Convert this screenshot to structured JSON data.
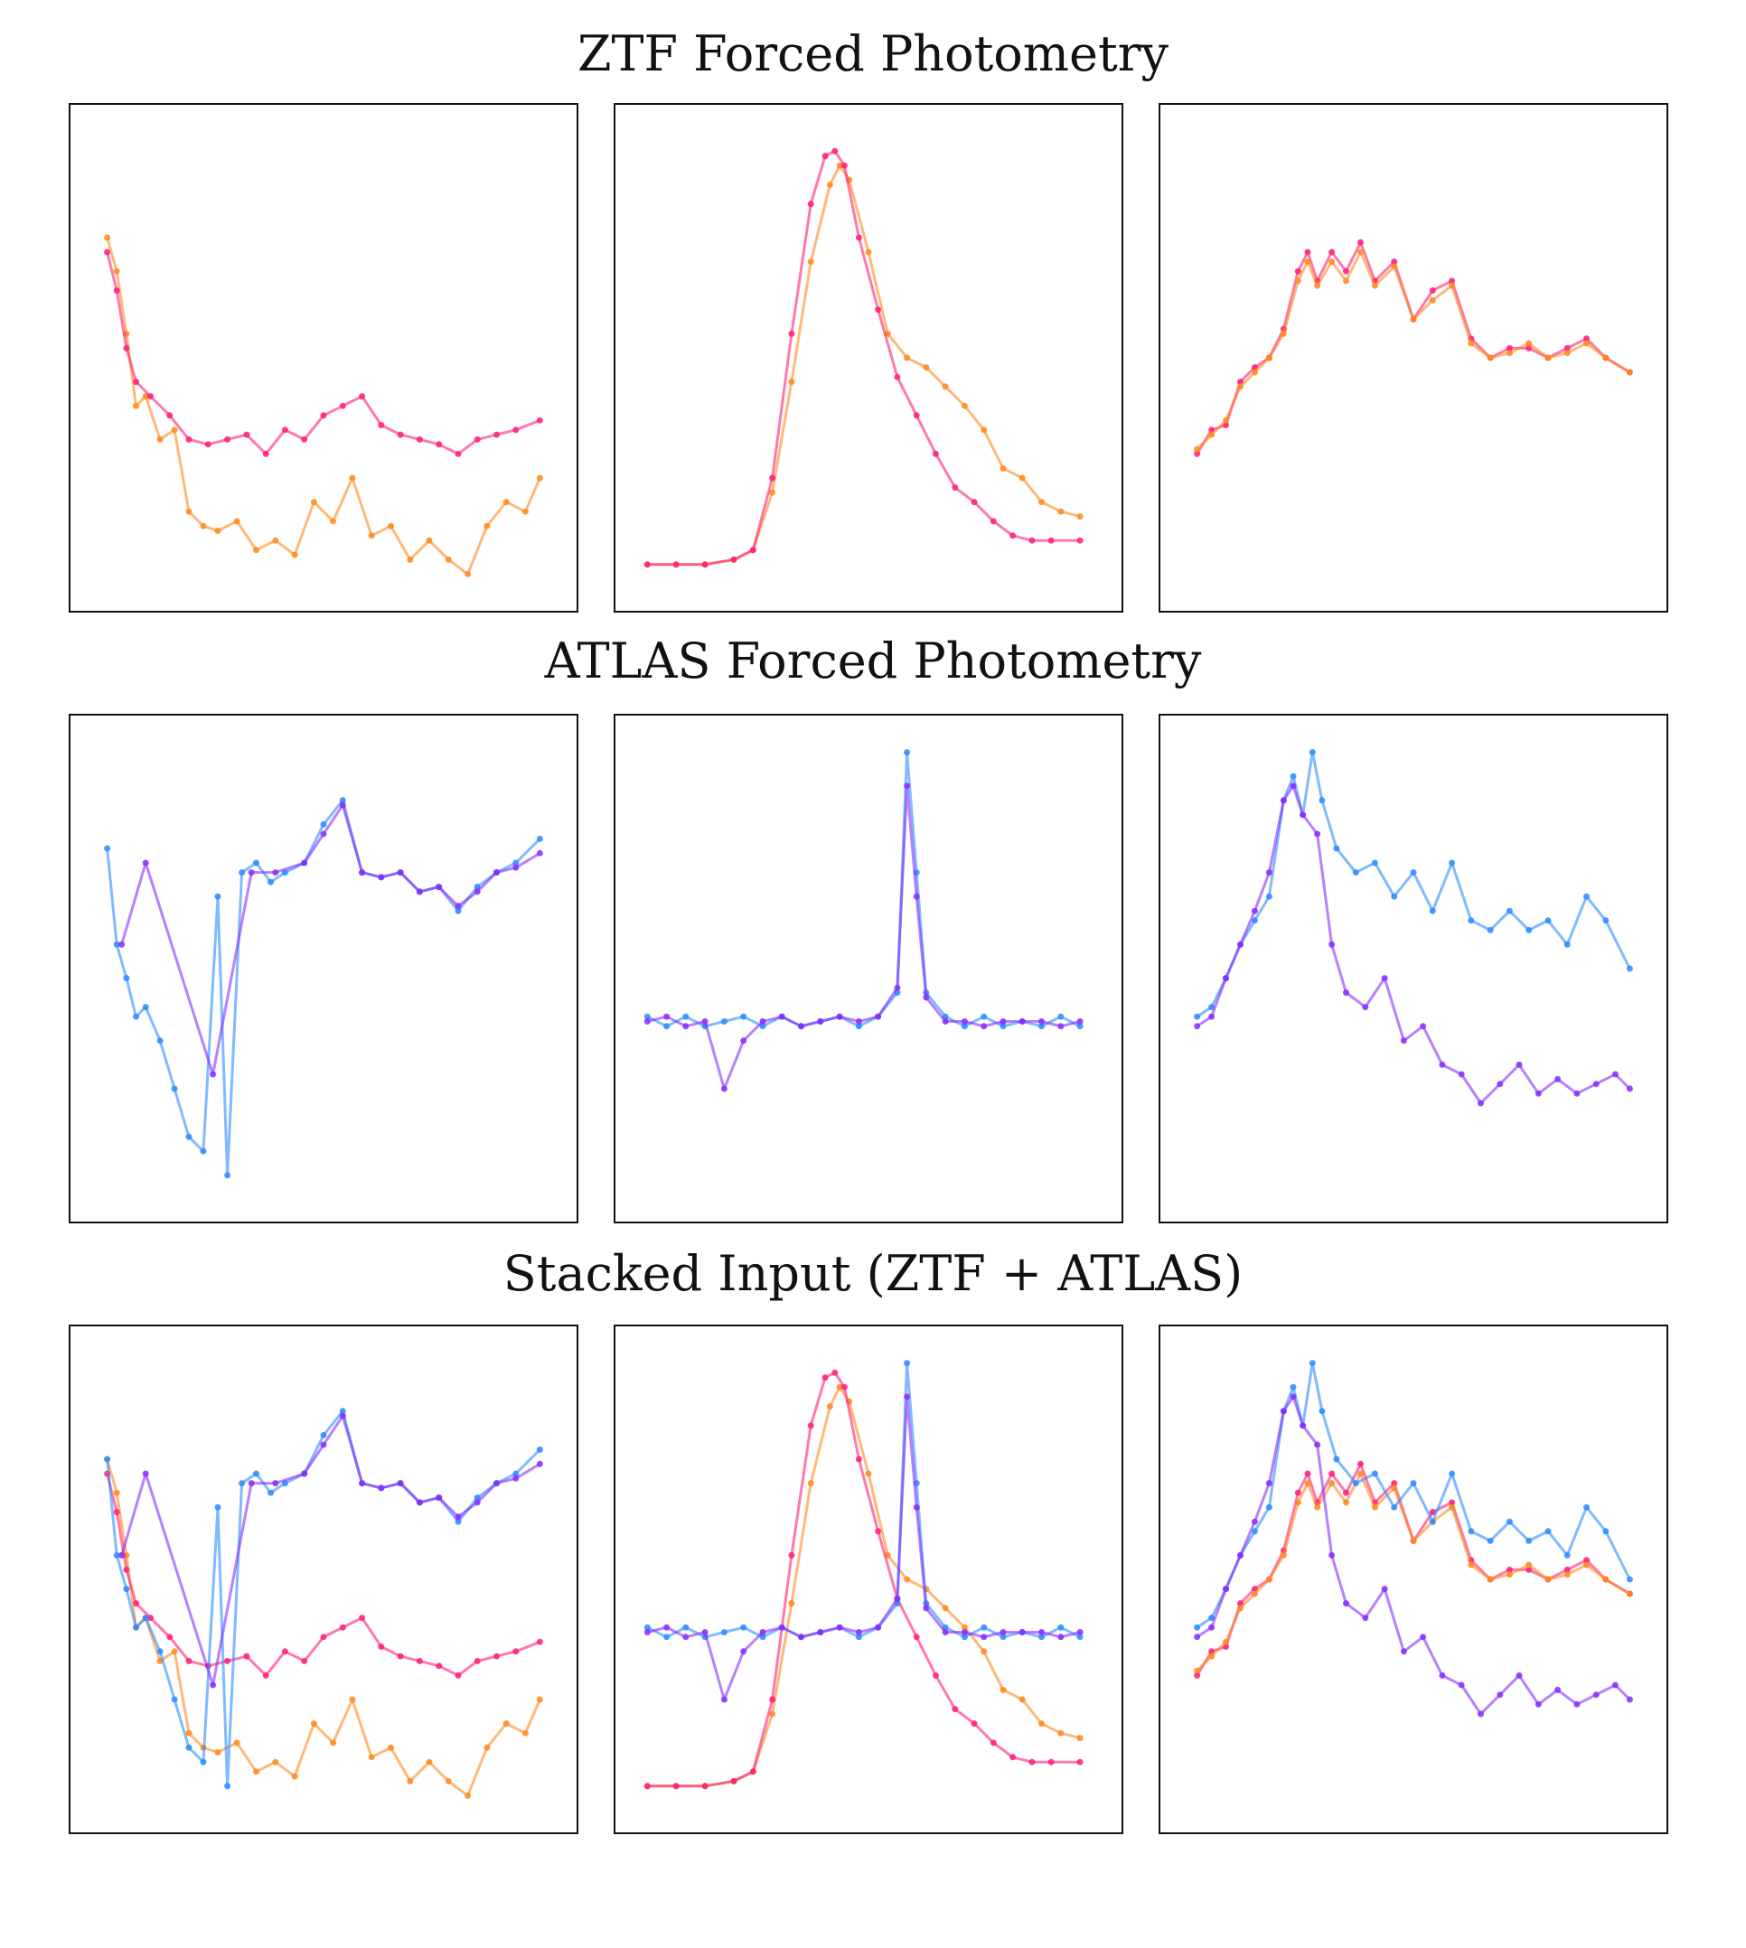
{
  "titles": {
    "row1": "ZTF Forced Photometry",
    "row2": "ATLAS Forced Photometry",
    "row3": "Stacked Input (ZTF + ATLAS)"
  },
  "colors": {
    "ztf_g": "#ff1f7a",
    "ztf_r": "#ff8a1f",
    "atlas_c": "#2b8cff",
    "atlas_o": "#8a2bff"
  },
  "chart_data": [
    {
      "type": "line",
      "panel": "ztf-1",
      "ylim": [
        0,
        1
      ],
      "xlim": [
        0,
        1
      ],
      "series": [
        {
          "color_key": "ztf_r",
          "x": [
            0.05,
            0.07,
            0.09,
            0.11,
            0.13,
            0.16,
            0.19,
            0.22,
            0.25,
            0.28,
            0.32,
            0.36,
            0.4,
            0.44,
            0.48,
            0.52,
            0.56,
            0.6,
            0.64,
            0.68,
            0.72,
            0.76,
            0.8,
            0.84,
            0.88,
            0.92,
            0.95
          ],
          "y": [
            0.75,
            0.68,
            0.55,
            0.4,
            0.42,
            0.33,
            0.35,
            0.18,
            0.15,
            0.14,
            0.16,
            0.1,
            0.12,
            0.09,
            0.2,
            0.16,
            0.25,
            0.13,
            0.15,
            0.08,
            0.12,
            0.08,
            0.05,
            0.15,
            0.2,
            0.18,
            0.25
          ]
        },
        {
          "color_key": "ztf_g",
          "x": [
            0.05,
            0.07,
            0.09,
            0.11,
            0.14,
            0.18,
            0.22,
            0.26,
            0.3,
            0.34,
            0.38,
            0.42,
            0.46,
            0.5,
            0.54,
            0.58,
            0.62,
            0.66,
            0.7,
            0.74,
            0.78,
            0.82,
            0.86,
            0.9,
            0.95
          ],
          "y": [
            0.72,
            0.64,
            0.52,
            0.45,
            0.42,
            0.38,
            0.33,
            0.32,
            0.33,
            0.34,
            0.3,
            0.35,
            0.33,
            0.38,
            0.4,
            0.42,
            0.36,
            0.34,
            0.33,
            0.32,
            0.3,
            0.33,
            0.34,
            0.35,
            0.37
          ]
        }
      ]
    },
    {
      "type": "line",
      "panel": "ztf-2",
      "ylim": [
        0,
        1
      ],
      "xlim": [
        0,
        1
      ],
      "series": [
        {
          "color_key": "ztf_r",
          "x": [
            0.04,
            0.1,
            0.16,
            0.22,
            0.26,
            0.3,
            0.34,
            0.38,
            0.42,
            0.44,
            0.46,
            0.5,
            0.54,
            0.58,
            0.62,
            0.66,
            0.7,
            0.74,
            0.78,
            0.82,
            0.86,
            0.9,
            0.94
          ],
          "y": [
            0.07,
            0.07,
            0.07,
            0.08,
            0.1,
            0.22,
            0.45,
            0.7,
            0.86,
            0.9,
            0.87,
            0.72,
            0.55,
            0.5,
            0.48,
            0.44,
            0.4,
            0.35,
            0.27,
            0.25,
            0.2,
            0.18,
            0.17
          ]
        },
        {
          "color_key": "ztf_g",
          "x": [
            0.04,
            0.1,
            0.16,
            0.22,
            0.26,
            0.3,
            0.34,
            0.38,
            0.41,
            0.43,
            0.45,
            0.48,
            0.52,
            0.56,
            0.6,
            0.64,
            0.68,
            0.72,
            0.76,
            0.8,
            0.84,
            0.88,
            0.94
          ],
          "y": [
            0.07,
            0.07,
            0.07,
            0.08,
            0.1,
            0.25,
            0.55,
            0.82,
            0.92,
            0.93,
            0.9,
            0.75,
            0.6,
            0.46,
            0.38,
            0.3,
            0.23,
            0.2,
            0.16,
            0.13,
            0.12,
            0.12,
            0.12
          ]
        }
      ]
    },
    {
      "type": "line",
      "panel": "ztf-3",
      "ylim": [
        0,
        1
      ],
      "xlim": [
        0,
        1
      ],
      "series": [
        {
          "color_key": "ztf_g",
          "x": [
            0.05,
            0.08,
            0.11,
            0.14,
            0.17,
            0.2,
            0.23,
            0.26,
            0.28,
            0.3,
            0.33,
            0.36,
            0.39,
            0.42,
            0.46,
            0.5,
            0.54,
            0.58,
            0.62,
            0.66,
            0.7,
            0.74,
            0.78,
            0.82,
            0.86,
            0.9,
            0.95
          ],
          "y": [
            0.3,
            0.35,
            0.36,
            0.45,
            0.48,
            0.5,
            0.56,
            0.68,
            0.72,
            0.66,
            0.72,
            0.68,
            0.74,
            0.66,
            0.7,
            0.58,
            0.64,
            0.66,
            0.54,
            0.5,
            0.52,
            0.52,
            0.5,
            0.52,
            0.54,
            0.5,
            0.47
          ]
        },
        {
          "color_key": "ztf_r",
          "x": [
            0.05,
            0.08,
            0.11,
            0.14,
            0.17,
            0.2,
            0.23,
            0.26,
            0.28,
            0.3,
            0.33,
            0.36,
            0.39,
            0.42,
            0.46,
            0.5,
            0.54,
            0.58,
            0.62,
            0.66,
            0.7,
            0.74,
            0.78,
            0.82,
            0.86,
            0.9,
            0.95
          ],
          "y": [
            0.31,
            0.34,
            0.37,
            0.44,
            0.47,
            0.5,
            0.55,
            0.66,
            0.7,
            0.65,
            0.7,
            0.66,
            0.72,
            0.65,
            0.69,
            0.58,
            0.62,
            0.65,
            0.53,
            0.5,
            0.51,
            0.53,
            0.5,
            0.51,
            0.53,
            0.5,
            0.47
          ]
        }
      ]
    },
    {
      "type": "line",
      "panel": "atlas-1",
      "ylim": [
        0,
        1
      ],
      "xlim": [
        0,
        1
      ],
      "series": [
        {
          "color_key": "atlas_c",
          "x": [
            0.05,
            0.07,
            0.09,
            0.11,
            0.13,
            0.16,
            0.19,
            0.22,
            0.25,
            0.28,
            0.3,
            0.33,
            0.36,
            0.39,
            0.42,
            0.46,
            0.5,
            0.54,
            0.58,
            0.62,
            0.66,
            0.7,
            0.74,
            0.78,
            0.82,
            0.86,
            0.9,
            0.95
          ],
          "y": [
            0.75,
            0.55,
            0.48,
            0.4,
            0.42,
            0.35,
            0.25,
            0.15,
            0.12,
            0.65,
            0.07,
            0.7,
            0.72,
            0.68,
            0.7,
            0.72,
            0.8,
            0.85,
            0.7,
            0.69,
            0.7,
            0.66,
            0.67,
            0.62,
            0.67,
            0.7,
            0.72,
            0.77
          ]
        },
        {
          "color_key": "atlas_o",
          "x": [
            0.08,
            0.13,
            0.27,
            0.35,
            0.4,
            0.46,
            0.5,
            0.54,
            0.58,
            0.62,
            0.66,
            0.7,
            0.74,
            0.78,
            0.82,
            0.86,
            0.9,
            0.95
          ],
          "y": [
            0.55,
            0.72,
            0.28,
            0.7,
            0.7,
            0.72,
            0.78,
            0.84,
            0.7,
            0.69,
            0.7,
            0.66,
            0.67,
            0.63,
            0.66,
            0.7,
            0.71,
            0.74
          ]
        }
      ]
    },
    {
      "type": "line",
      "panel": "atlas-2",
      "ylim": [
        0,
        1
      ],
      "xlim": [
        0,
        1
      ],
      "series": [
        {
          "color_key": "atlas_c",
          "x": [
            0.04,
            0.08,
            0.12,
            0.16,
            0.2,
            0.24,
            0.28,
            0.32,
            0.36,
            0.4,
            0.44,
            0.48,
            0.52,
            0.56,
            0.58,
            0.6,
            0.62,
            0.66,
            0.7,
            0.74,
            0.78,
            0.82,
            0.86,
            0.9,
            0.94
          ],
          "y": [
            0.4,
            0.38,
            0.4,
            0.38,
            0.39,
            0.4,
            0.38,
            0.4,
            0.38,
            0.39,
            0.4,
            0.38,
            0.4,
            0.45,
            0.95,
            0.7,
            0.45,
            0.4,
            0.38,
            0.4,
            0.38,
            0.39,
            0.38,
            0.4,
            0.38
          ]
        },
        {
          "color_key": "atlas_o",
          "x": [
            0.04,
            0.08,
            0.12,
            0.16,
            0.2,
            0.24,
            0.28,
            0.32,
            0.36,
            0.4,
            0.44,
            0.48,
            0.52,
            0.56,
            0.58,
            0.6,
            0.62,
            0.66,
            0.7,
            0.74,
            0.78,
            0.82,
            0.86,
            0.9,
            0.94
          ],
          "y": [
            0.39,
            0.4,
            0.38,
            0.39,
            0.25,
            0.35,
            0.39,
            0.4,
            0.38,
            0.39,
            0.4,
            0.39,
            0.4,
            0.46,
            0.88,
            0.65,
            0.44,
            0.39,
            0.39,
            0.38,
            0.39,
            0.39,
            0.39,
            0.38,
            0.39
          ]
        }
      ]
    },
    {
      "type": "line",
      "panel": "atlas-3",
      "ylim": [
        0,
        1
      ],
      "xlim": [
        0,
        1
      ],
      "series": [
        {
          "color_key": "atlas_c",
          "x": [
            0.05,
            0.08,
            0.11,
            0.14,
            0.17,
            0.2,
            0.23,
            0.25,
            0.27,
            0.29,
            0.31,
            0.34,
            0.38,
            0.42,
            0.46,
            0.5,
            0.54,
            0.58,
            0.62,
            0.66,
            0.7,
            0.74,
            0.78,
            0.82,
            0.86,
            0.9,
            0.95
          ],
          "y": [
            0.4,
            0.42,
            0.48,
            0.55,
            0.6,
            0.65,
            0.85,
            0.9,
            0.82,
            0.95,
            0.85,
            0.75,
            0.7,
            0.72,
            0.65,
            0.7,
            0.62,
            0.72,
            0.6,
            0.58,
            0.62,
            0.58,
            0.6,
            0.55,
            0.65,
            0.6,
            0.5
          ]
        },
        {
          "color_key": "atlas_o",
          "x": [
            0.05,
            0.08,
            0.11,
            0.14,
            0.17,
            0.2,
            0.23,
            0.25,
            0.27,
            0.3,
            0.33,
            0.36,
            0.4,
            0.44,
            0.48,
            0.52,
            0.56,
            0.6,
            0.64,
            0.68,
            0.72,
            0.76,
            0.8,
            0.84,
            0.88,
            0.92,
            0.95
          ],
          "y": [
            0.38,
            0.4,
            0.48,
            0.55,
            0.62,
            0.7,
            0.85,
            0.88,
            0.82,
            0.78,
            0.55,
            0.45,
            0.42,
            0.48,
            0.35,
            0.38,
            0.3,
            0.28,
            0.22,
            0.26,
            0.3,
            0.24,
            0.27,
            0.24,
            0.26,
            0.28,
            0.25
          ]
        }
      ]
    }
  ]
}
